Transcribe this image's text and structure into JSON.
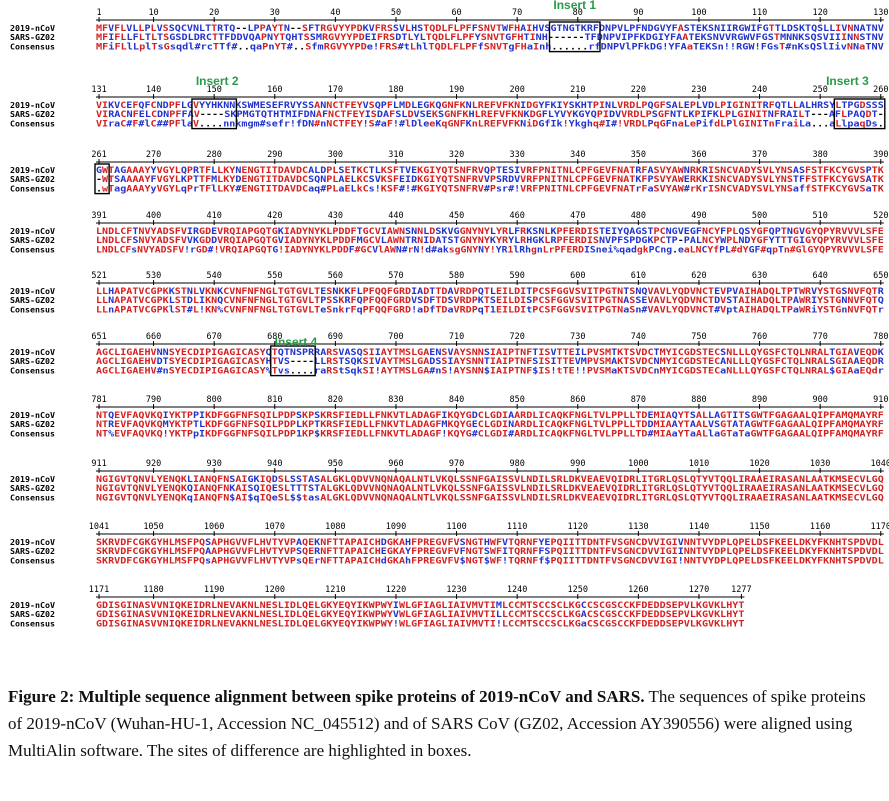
{
  "colors": {
    "high": "#d42020",
    "low": "#2233cc",
    "neutral": "#000000",
    "insert_label": "#2a9a4a",
    "box": "#000000",
    "ruler": "#000000"
  },
  "insert_labels": [
    "Insert 1",
    "Insert 2",
    "Insert 3",
    "Insert 4"
  ],
  "row_labels": [
    "2019-nCoV",
    "SARS-GZ02",
    "Consensus"
  ],
  "blocks": [
    {
      "ruler": [
        "1",
        "10",
        "20",
        "30",
        "40",
        "50",
        "60",
        "70",
        "80",
        "90",
        "100",
        "110",
        "120",
        "130"
      ],
      "seq": {
        "ncov": "MFVFLVLLPLVSSQCVNLTTRTQ--LPPAYTN--SFTRGVYYPDKVFRSSVLHSTQDLFLPFFSNVTWFHAIHVSGTNGTKRFDNPVLPFNDGVYFASTEKSNIIRGWIFGTTLDSKTQSLLIVNNATNV",
        "sars": "MFIFLLFLTLTSGSDLDRCTTFDDVQAPNYTQHTSSMRGVYYPDEIFRSDTLYLTQDLFLPFYSNVTGFHTINH------TFDNPVIPFKDGIYFAATEKSNVVRGWVFGSTMNNKSQSVIIINNSTNV",
        "cons": "MFiFLlLplTsGsqdl#rcTTf#..qaPnYT#..SfmRGVYYPDe!FRS#tLhlTQDLFLPFfSNVTgFHaInh......rfDNPVlPFkDG!YFAaTEKSn!!RGW!FGsT#nKsQSlIivNNaTNV"
      },
      "boxes": [
        {
          "s": 75,
          "e": 83
        }
      ]
    },
    {
      "ruler": [
        "131",
        "140",
        "150",
        "160",
        "170",
        "180",
        "190",
        "200",
        "210",
        "220",
        "230",
        "240",
        "250",
        "260"
      ],
      "seq": {
        "ncov": "VIKVCEFQFCNDPFLGVYYHKNNKSWMESEFRVYSSANNCTFEYVSQPFLMDLEGKQGNFKNLREFVFKNIDGYFKIYSKHTPINLVRDLPQGFSALEPLVDLPIGINITRFQTLLALHRSYLTPGDSSS",
        "sars": "VIRACNFELCDNPFFAV----SKPMGTQTHTMIFDNAFNCTFEYISDAFSLDVSEKSGNFKHLREFVFKNKDGFLYVYKGYQPIDVVRDLPSGFNTLKPIFKLPLGINITNFRAILT---AFLPAQDT-",
        "cons": "VIraC#F#lC##PFlaV....nnkmgm#sefr!fDN#nNCTFEY!S#aF!#lDleeKqGNFKnLREFVFKNiDGfIk!Ykghq#I#!VRDLPqGFnaLePifdLPlGINITnFraiLa...aLlpaqDs."
      },
      "boxes": [
        {
          "s": 16,
          "e": 23
        },
        {
          "s": 122,
          "e": 130
        }
      ]
    },
    {
      "ruler": [
        "261",
        "270",
        "280",
        "290",
        "300",
        "310",
        "320",
        "330",
        "340",
        "350",
        "360",
        "370",
        "380",
        "390"
      ],
      "seq": {
        "ncov": "GWTAGAAAYYVGYLQPRTFLLKYNENGTITDAVDCALDPLSETKCTLKSFTVEKGIYQTSNFRVQPTESIVRFPNITNLCPFGEVFNATRFASVYAWNRKRISNCVADYSVLYNSASFSTFKCYGVSPTK",
        "sars": "-WTSAAAAYFVGYLKPTTFMLKYDENGTITDAVDCSQNPLAELKCSVKSFEIDKGIYQTSNFRVVPSRDVVRFPNITNLCPFGEVFNATKFPSVYAWERKKISNCVADYSVLYNSTFFSTFKCYGVSATK",
        "cons": ".wTagAAAYyVGYLqPrTFlLKY#ENGTITDAVDCaq#PLaELkCs!KSF#!#KGIYQTSNFRV#Psr#!VRFPNITNLCPFGEVFNATrFaSVYAW#rKrISNCVADYSVLYNSaffSTFKCYGVSaTK"
      },
      "boxes": [
        {
          "s": 0,
          "e": 2
        }
      ]
    },
    {
      "ruler": [
        "391",
        "400",
        "410",
        "420",
        "430",
        "440",
        "450",
        "460",
        "470",
        "480",
        "490",
        "500",
        "510",
        "520"
      ],
      "seq": {
        "ncov": "LNDLCFTNVYADSFVIRGDEVRQIAPGQTGKIADYNYKLPDDFTGCVIAWNSNNLDSKVGGNYNYLYRLFRKSNLKPFERDISTEIYQAGSTPCNGVEGFNCYFPLQSYGFQPTNGVGYQPYRVVVLSFE",
        "sars": "LNDLCFSNVYADSFVVKGDDVRQIAPGQTGVIADYNYKLPDDFMGCVLAWNTRNIDATSTGNYNYKYRYLRHGKLRPFERDISNVPFSPDGKPCTP-PALNCYWPLNDYGFYTTTGIGYQPYRVVVLSFE",
        "cons": "LNDLCFsNVYADSFV!rGD#!VRQIAPGQTG!IADYNYKLPDDF#GCVlAWN#rN!d#aksgGNYNY!YR1lRhgnLrPFERDISnei%qadgkPCng.eaLNCYfPL#dYGF#qpTn#GlGYQPYRVVVLSFE"
      },
      "boxes": []
    },
    {
      "ruler": [
        "521",
        "530",
        "540",
        "550",
        "560",
        "570",
        "580",
        "590",
        "600",
        "610",
        "620",
        "630",
        "640",
        "650"
      ],
      "seq": {
        "ncov": "LLHAPATVCGPKKSTNLVKNKCVNFNFNGLTGTGVLTESNKKFLPFQQFGRDIADTTDAVRDPQTLEILDITPCSFGGVSVITPGTNTSNQVAVLYQDVNCTEVPVAIHADQLTPTWRVYSTGSNVFQTR",
        "sars": "LLNAPATVCGPKLSTDLIKNQCVNFNFNGLTGTGVLTPSSKRFQPFQQFGRDVSDFTDSVRDPKTSEILDISPCSFGGVSVITPGTNASSEVAVLYQDVNCTDVSTAIHADQLTPAWRIYSTGNNVFQTQ",
        "cons": "LLnAPATVCGPKlST#L!KN%CVNFNFNGLTGTGVLTeSnkrFqPFQQFGRD!aDfTDaVRDPqT1EILDItPCSFGGVSVITPGTNaSn#VAVLYQDVNCT#VptAIHADQLTPaWRiYSTGnNVFQTr"
      },
      "boxes": []
    },
    {
      "ruler": [
        "651",
        "660",
        "670",
        "680",
        "690",
        "700",
        "710",
        "720",
        "730",
        "740",
        "750",
        "760",
        "770",
        "780"
      ],
      "seq": {
        "ncov": "AGCLIGAEHVNNSYECDIPIGAGICASYQTQTNSPRRARSVASQSIIAYTMSLGAENSVAYSNNSIAIPTNFTISVTTEILPVSMTKTSVDCTMYICGDSTECSNLLLQYGSFCTQLNRALTGIAVEQDK",
        "sars": "AGCLIGAEHVDTSYECDIPIGAGICASYHTVS----LLRSTSQKSIVAYTMSLGADSSIAYSNNTIAIPTNFSISITTEVMPVSMAKTSVDCNMYICGDSTECANLLLQYGSFCTQLNRALSGIAAEQDR",
        "cons": "AGCLIGAEHV#nSYECDIPIGAGICASY%Tvs....raRStSqkSI!AYTMSLGA#nS!AYSNN$IAIPTNF$IS!tTE!!PVSMaKTSVDCnMYICGDSTECaNLLLQYGSFCTQLNRAL$GIAaEQdr"
      },
      "boxes": [
        {
          "s": 29,
          "e": 36
        }
      ]
    },
    {
      "ruler": [
        "781",
        "790",
        "800",
        "810",
        "820",
        "830",
        "840",
        "850",
        "860",
        "870",
        "880",
        "890",
        "900",
        "910"
      ],
      "seq": {
        "ncov": "NTQEVFAQVKQIYKTPPIKDFGGFNFSQILPDPSKPSKRSFIEDLLFNKVTLADAGFIKQYGDCLGDIAARDLICAQKFNGLTVLPPLLTDEMIAQYTSALLAGTITSGWTFGAGAALQIPFAMQMAYRF",
        "sars": "NTREVFAQVKQMYKTPTLKDFGGFNFSQILPDPLKPTKRSFIEDLLFNKVTLADAGFMKQYGECLGDINARDLICAQKFNGLTVLPPLLTDDMIAAYTAALVSGTATAGWTFGAGAALQIPFAMQMAYRF",
        "cons": "NT%EVFAQVKQ!YKTPpIKDFGGFNFSQILPDP1KP$KRSFIEDLLFNKVTLADAGF!KQYG#CLGDI#ARDLICAQKFNGLTVLPPLLTD#MIAaYTaALlaGTaTaGWTFGAGAALQIPFAMQMAYRF"
      },
      "boxes": []
    },
    {
      "ruler": [
        "911",
        "920",
        "930",
        "940",
        "950",
        "960",
        "970",
        "980",
        "990",
        "1000",
        "1010",
        "1020",
        "1030",
        "1040"
      ],
      "seq": {
        "ncov": "NGIGVTQNVLYENQKLIANQFNSAIGKIQDSLSSTASALGKLQDVVNQNAQALNTLVKQLSSNFGAISSVLNDILSRLDKVEAEVQIDRLITGRLQSLQTYVTQQLIRAAEIRASANLAATKMSECVLGQ",
        "sars": "NGIGVTQNVLYENQKQIANQFNKAISQIQESLTTTSTALGKLQDVVNQNAQALNTLVKQLSSNFGAISSVLNDILSRLDKVEAEVQIDRLITGRLQSLQTYVTQQLIRAAEIRASANLAATKMSECVLGQ",
        "cons": "NGIGVTQNVLYENQKqIANQFN$AI$qIQeSL$$tasALGKLQDVVNQNAQALNTLVKQLSSNFGAISSVLNDILSRLDKVEAEVQIDRLITGRLQSLQTYVTQQLIRAAEIRASANLAATKMSECVLGQ"
      },
      "boxes": []
    },
    {
      "ruler": [
        "1041",
        "1050",
        "1060",
        "1070",
        "1080",
        "1090",
        "1100",
        "1110",
        "1120",
        "1130",
        "1140",
        "1150",
        "1160",
        "1170"
      ],
      "seq": {
        "ncov": "SKRVDFCGKGYHLMSFPQSAPHGVVFLHVTYVPAQEKNFTTAPAICHDGKAHFPREGVFVSNGTHWFVTQRNFYEPQIITTDNTFVSGNCDVVIGIVNNTVYDPLQPELDSFKEELDKYFKNHTSPDVDL",
        "sars": "SKRVDFCGKGYHLMSFPQAAPHGVVFLHVTYVPSQERNFTTAPAICHEGKAYFPREGVFVFNGTSWFITQRNFFSPQIITTDNTFVSGNCDVVIGIINNTVYDPLQPELDSFKEELDKYFKNHTSPDVDL",
        "cons": "SKRVDFCGKGYHLMSFPQsAPHGVVFLHVTYVPsQErNFTTAPAICHdGKAhFPREGVFV$NGT$WF!TQRNFf$PQIITTDNTFVSGNCDVVIGI!NNTVYDPLQPELDSFKEELDKYFKNHTSPDVDL"
      },
      "boxes": []
    },
    {
      "ruler": [
        "1171",
        "1180",
        "1190",
        "1200",
        "1210",
        "1220",
        "1230",
        "1240",
        "1250",
        "1260",
        "1270",
        "1277"
      ],
      "seq": {
        "ncov": "GDISGINASVVNIQKEIDRLNEVAKNLNESLIDLQELGKYEQYIKWPWYIWLGFIAGLIAIVMVTIMLCCMTSCCSCLKGCCSCGSCCKFDEDDSEPVLKGVKLHYT",
        "sars": "GDISGINASVVNIQKEIDRLNEVAKNLNESLIDLQELGKYEQYIKWPWYVWLGFIAGLIAIVMVTILLCCMTSCCSCLKGACSCGSCCKFDEDDSEPVLKGVKLHYT",
        "cons": "GDISGINASVVNIQKEIDRLNEVAKNLNESLIDLQELGKYEQYIKWPWY!WLGFIAGLIAIVMVTI!LCCMTSCCSCLKGaCSCGSCCKFDEDDSEPVLKGVKLHYT"
      },
      "boxes": []
    }
  ],
  "caption": {
    "bold": "Figure 2: Multiple sequence alignment between spike proteins of 2019-nCoV and SARS.",
    "text": " The sequences of spike proteins of 2019-nCoV (Wuhan-HU-1, Accession NC_045512) and of SARS CoV (GZ02, Accession AY390556) were aligned using MultiAlin software. The sites of difference are highlighted in  boxes."
  }
}
